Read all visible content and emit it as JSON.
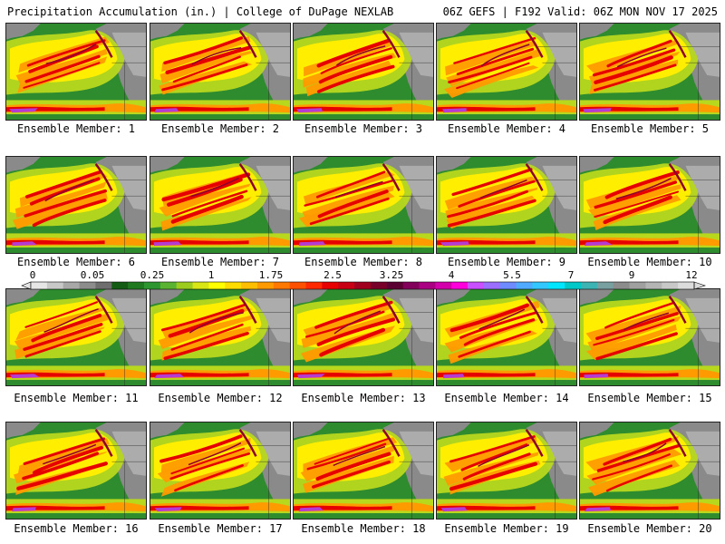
{
  "header": {
    "left": "Precipitation Accumulation (in.) | College of DuPage NEXLAB",
    "right": "06Z GEFS | F192 Valid: 06Z MON NOV 17 2025"
  },
  "map_panels": [
    {
      "caption": "Ensemble Member: 1"
    },
    {
      "caption": "Ensemble Member: 2"
    },
    {
      "caption": "Ensemble Member: 3"
    },
    {
      "caption": "Ensemble Member: 4"
    },
    {
      "caption": "Ensemble Member: 5"
    },
    {
      "caption": "Ensemble Member: 6"
    },
    {
      "caption": "Ensemble Member: 7"
    },
    {
      "caption": "Ensemble Member: 8"
    },
    {
      "caption": "Ensemble Member: 9"
    },
    {
      "caption": "Ensemble Member: 10"
    },
    {
      "caption": "Ensemble Member: 11"
    },
    {
      "caption": "Ensemble Member: 12"
    },
    {
      "caption": "Ensemble Member: 13"
    },
    {
      "caption": "Ensemble Member: 14"
    },
    {
      "caption": "Ensemble Member: 15"
    },
    {
      "caption": "Ensemble Member: 16"
    },
    {
      "caption": "Ensemble Member: 17"
    },
    {
      "caption": "Ensemble Member: 18"
    },
    {
      "caption": "Ensemble Member: 19"
    },
    {
      "caption": "Ensemble Member: 20"
    }
  ],
  "colorbar": {
    "labels": [
      "0",
      "0.05",
      "0.25",
      "1",
      "1.75",
      "2.5",
      "3.25",
      "4",
      "5.5",
      "7",
      "9",
      "12"
    ],
    "colors": [
      "#e6e6e6",
      "#c8c8c8",
      "#a8a8a8",
      "#8c8c8c",
      "#6e6e6e",
      "#145c14",
      "#1f7a1f",
      "#2e962e",
      "#5ab432",
      "#9ccd1e",
      "#d7e614",
      "#ffff00",
      "#ffdc00",
      "#ffbe00",
      "#ff9b00",
      "#ff7800",
      "#ff5000",
      "#ff2800",
      "#e60000",
      "#c80014",
      "#a0001e",
      "#780028",
      "#5a0032",
      "#82005a",
      "#aa0082",
      "#d200aa",
      "#ff00dc",
      "#c850ff",
      "#9b6eff",
      "#6e8cff",
      "#50aaff",
      "#32c8ff",
      "#00e6ff",
      "#00c8c8",
      "#3cb4b4",
      "#78a0a0",
      "#8c8c8c",
      "#a0a0a0",
      "#b4b4b4",
      "#c8c8c8",
      "#dcdcdc"
    ]
  },
  "map_colors": {
    "ocean": "#2e8b2e",
    "light_rain": "#b8d81e",
    "moderate": "#ffee00",
    "heavy": "#ff9a00",
    "very_heavy": "#e60000",
    "extreme": "#8c0030",
    "tropical": "#b43cd2",
    "land_dry": "#8a8a8a",
    "land_light": "#c8c8c8"
  }
}
